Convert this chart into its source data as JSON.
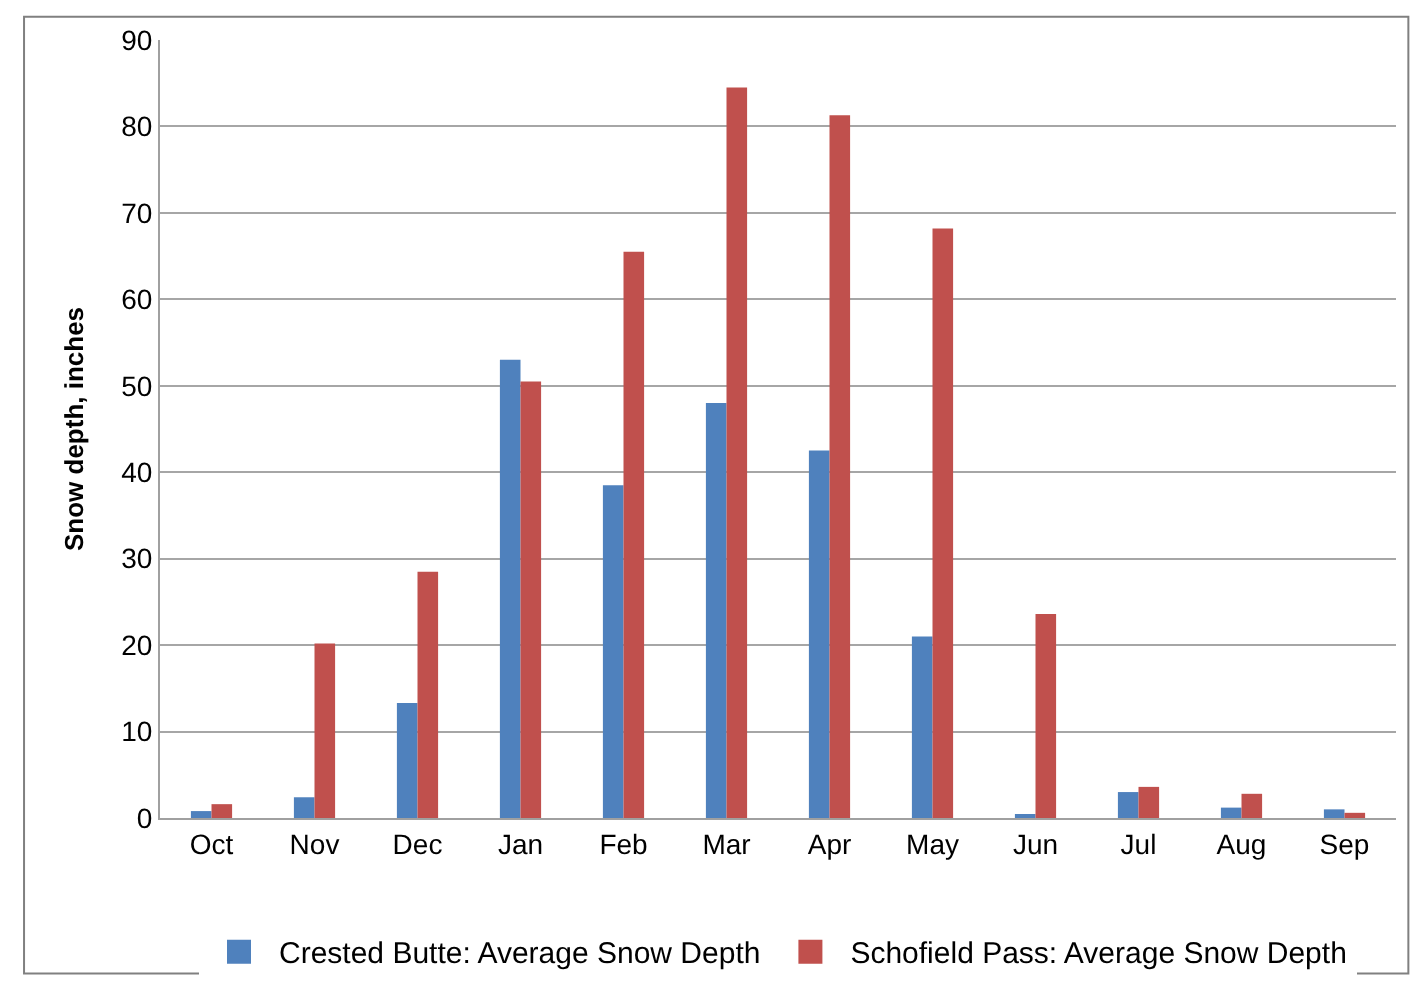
{
  "chart_data": {
    "type": "bar",
    "ylabel": "Snow depth, inches",
    "categories": [
      "Oct",
      "Nov",
      "Dec",
      "Jan",
      "Feb",
      "Mar",
      "Apr",
      "May",
      "Jun",
      "Jul",
      "Aug",
      "Sep"
    ],
    "series": [
      {
        "name": "Crested Butte: Average Snow Depth",
        "color": "#4f81bd",
        "values": [
          0.8,
          2.4,
          13.3,
          53,
          38.5,
          48,
          42.5,
          21,
          0.3,
          3.0,
          1.2,
          1.0
        ]
      },
      {
        "name": "Schofield Pass: Average Snow Depth",
        "color": "#c0504d",
        "values": [
          1.6,
          20.2,
          28.5,
          50.5,
          65.5,
          84.5,
          81.3,
          68.2,
          23.6,
          3.6,
          2.8,
          0.6
        ]
      }
    ],
    "ylim": [
      0,
      90
    ],
    "yticks": [
      0,
      10,
      20,
      30,
      40,
      50,
      60,
      70,
      80,
      90
    ],
    "grid": "y",
    "legend": "bottom"
  }
}
